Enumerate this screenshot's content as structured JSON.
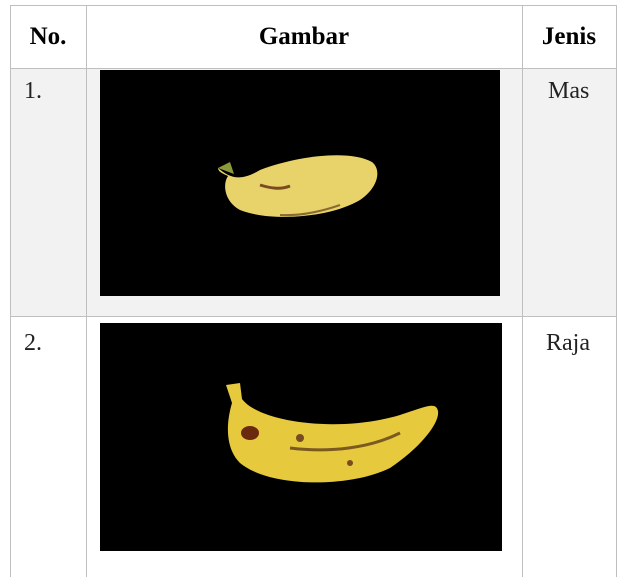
{
  "table": {
    "header": [
      "No.",
      "Gambar",
      "Jenis"
    ],
    "rows": [
      [
        "1.",
        "Mas"
      ],
      [
        "2.",
        "Raja"
      ]
    ]
  }
}
